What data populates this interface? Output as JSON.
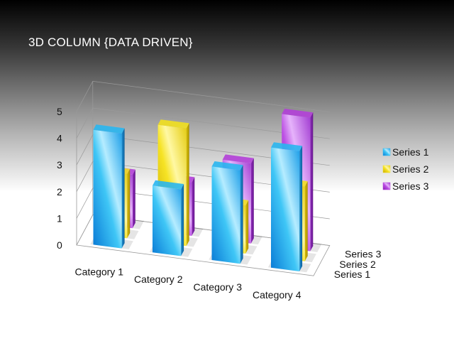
{
  "slide": {
    "title": "3D COLUMN {DATA DRIVEN}"
  },
  "chart_data": {
    "type": "bar",
    "categories": [
      "Category 1",
      "Category 2",
      "Category 3",
      "Category 4"
    ],
    "series": [
      {
        "name": "Series 1",
        "values": [
          4.3,
          2.5,
          3.5,
          4.5
        ],
        "color": "#29b6f0"
      },
      {
        "name": "Series 2",
        "values": [
          2.4,
          4.4,
          1.8,
          2.8
        ],
        "color": "#f2e01f"
      },
      {
        "name": "Series 3",
        "values": [
          2.0,
          2.0,
          3.0,
          5.0
        ],
        "color": "#b23fd8"
      }
    ],
    "ylim": [
      0,
      5
    ],
    "yticks": [
      "0",
      "1",
      "2",
      "3",
      "4",
      "5"
    ],
    "grid": true,
    "projection": "3d",
    "legend_position": "right"
  }
}
